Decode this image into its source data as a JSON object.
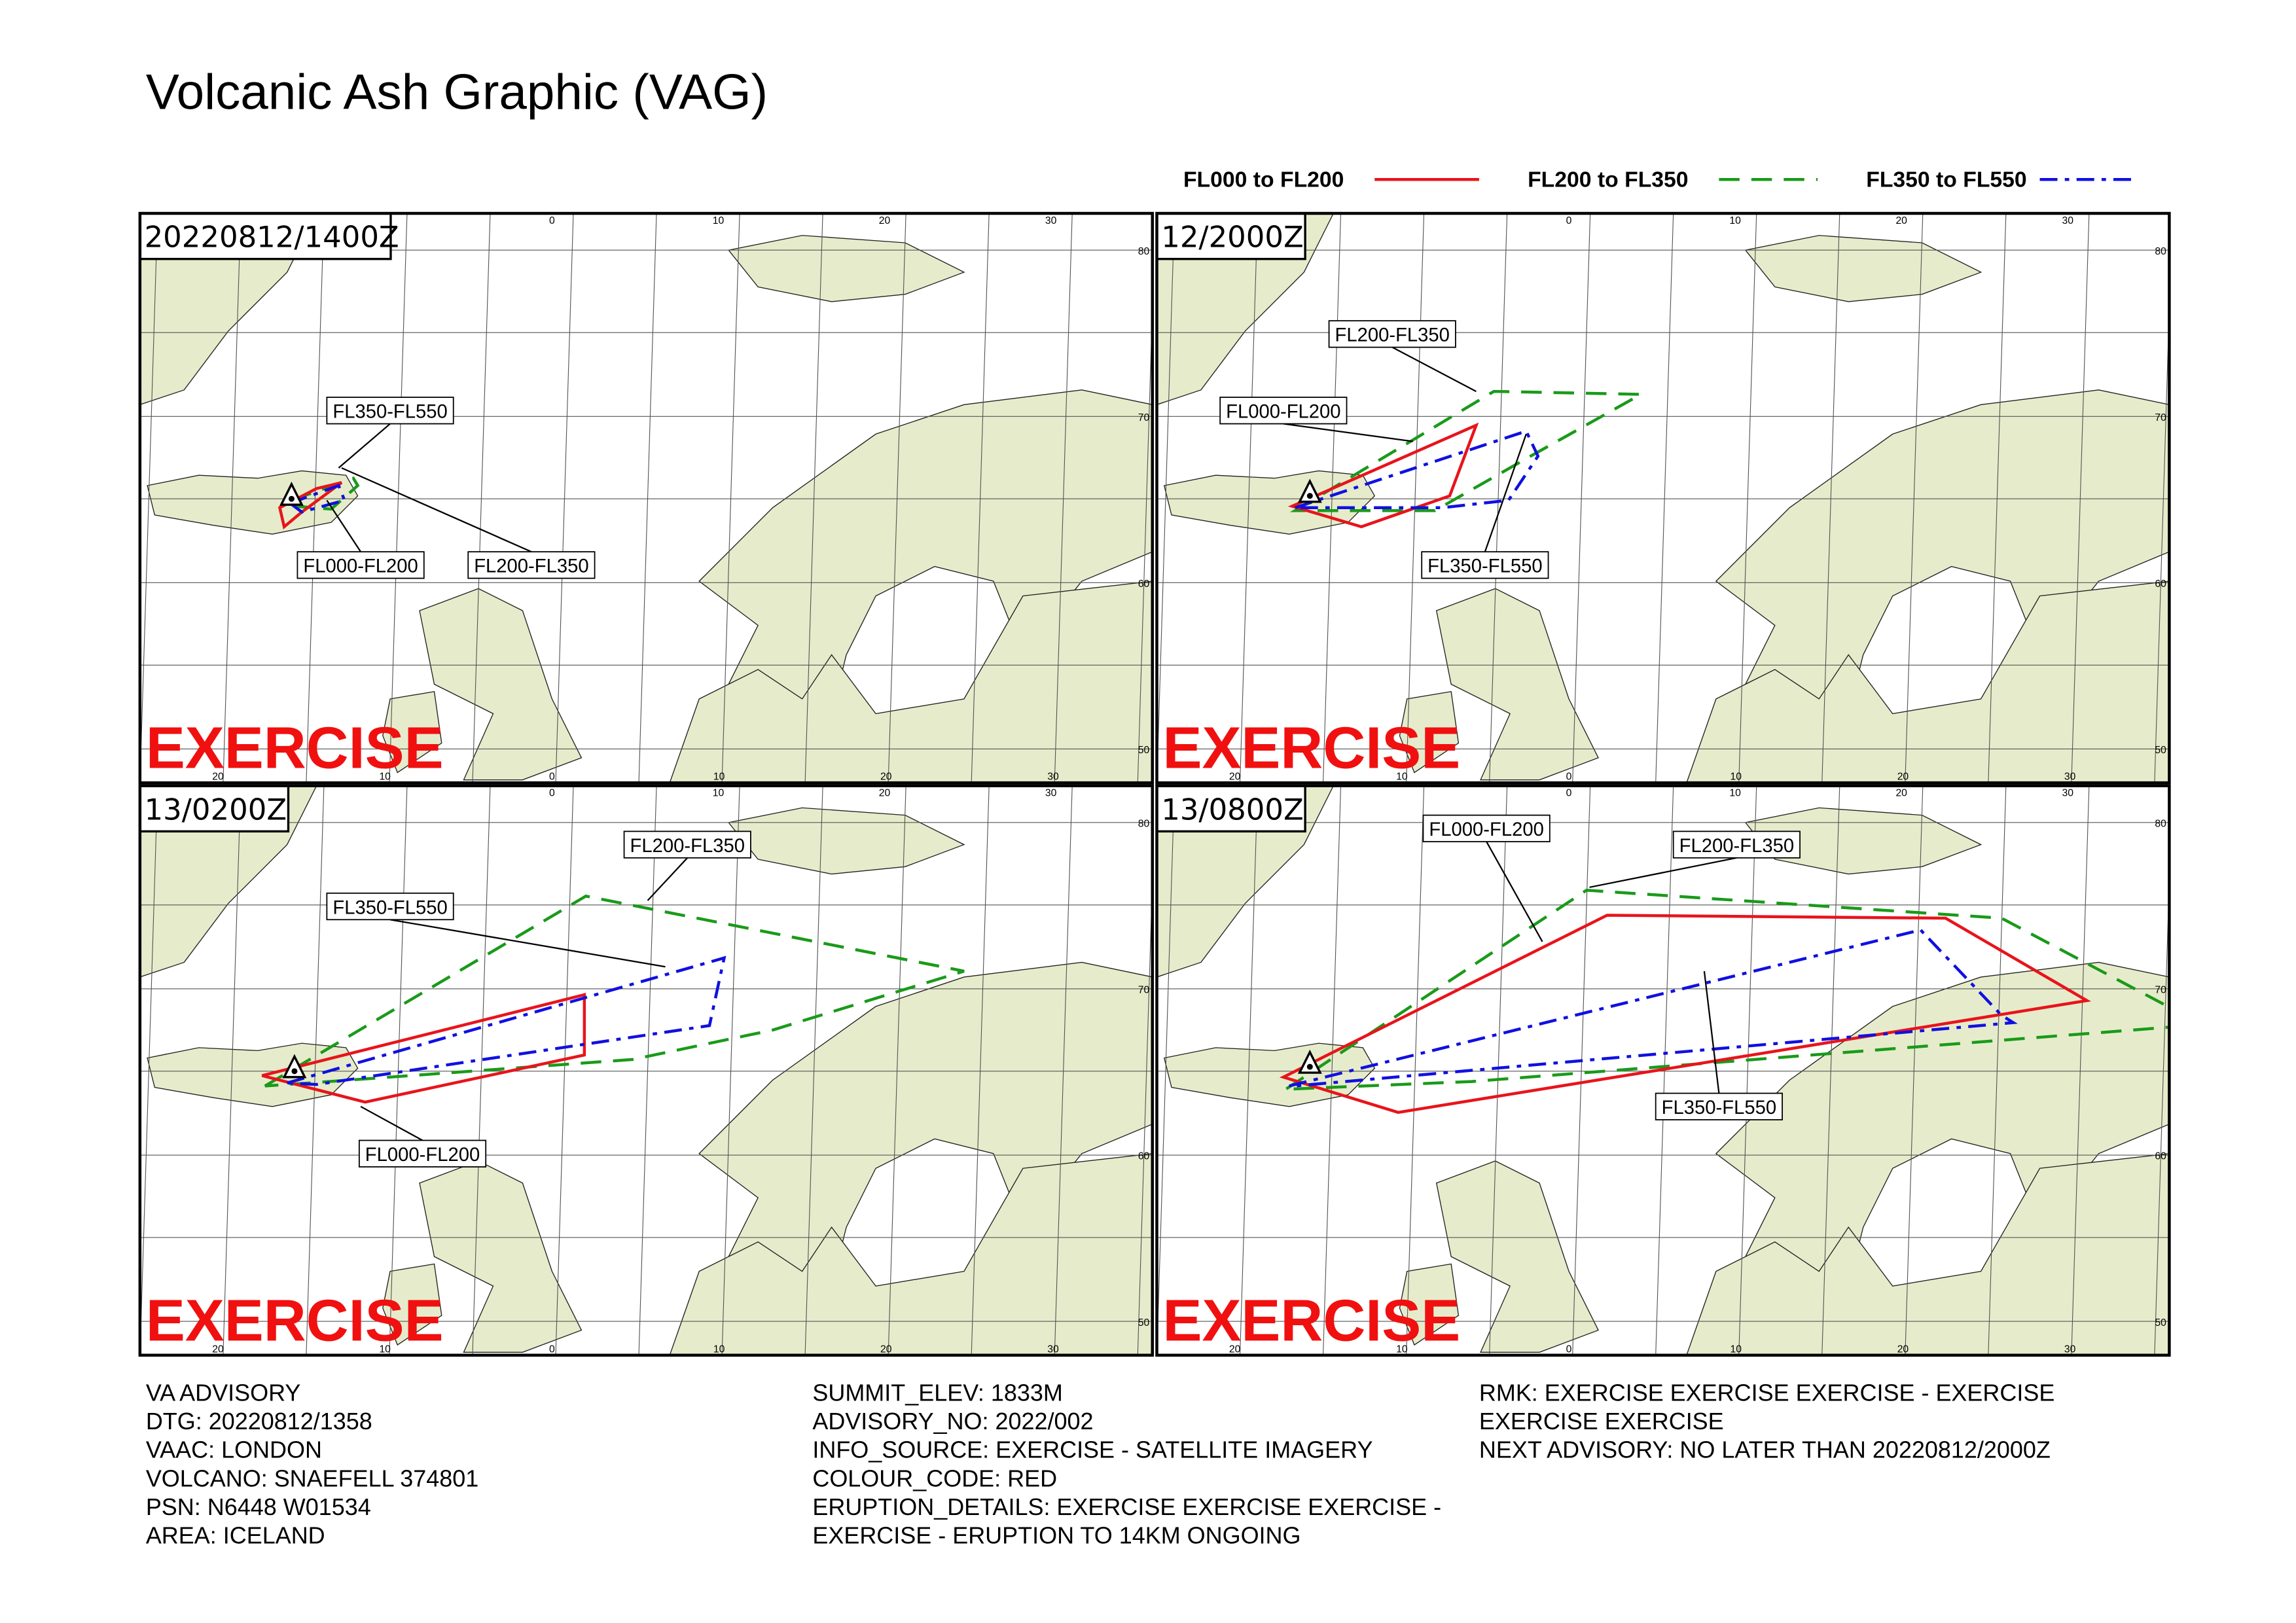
{
  "title": "Volcanic Ash Graphic (VAG)",
  "legend": [
    "FL000 to FL200",
    "FL200 to FL350",
    "FL350 to FL550"
  ],
  "watermark": "EXERCISE",
  "graticule": {
    "lon_top": [
      "0",
      "10",
      "20",
      "30"
    ],
    "lon_bottom": [
      "20",
      "10",
      "0",
      "10",
      "20",
      "30"
    ],
    "lat": [
      "80",
      "70",
      "60",
      "50"
    ]
  },
  "panels": [
    {
      "time": "20220812/1400Z",
      "labels": [
        "FL350-FL550",
        "FL000-FL200",
        "FL200-FL350"
      ]
    },
    {
      "time": "12/2000Z",
      "labels": [
        "FL200-FL350",
        "FL000-FL200",
        "FL350-FL550"
      ]
    },
    {
      "time": "13/0200Z",
      "labels": [
        "FL200-FL350",
        "FL350-FL550",
        "FL000-FL200"
      ]
    },
    {
      "time": "13/0800Z",
      "labels": [
        "FL000-FL200",
        "FL200-FL350",
        "FL350-FL550"
      ]
    }
  ],
  "advisory": [
    [
      "VA ADVISORY",
      "DTG: 20220812/1358",
      "VAAC: LONDON",
      "VOLCANO: SNAEFELL 374801",
      "PSN: N6448 W01534",
      "AREA: ICELAND"
    ],
    [
      "SUMMIT_ELEV: 1833M",
      "ADVISORY_NO: 2022/002",
      "INFO_SOURCE: EXERCISE - SATELLITE IMAGERY",
      "COLOUR_CODE: RED",
      "ERUPTION_DETAILS: EXERCISE EXERCISE EXERCISE -",
      "EXERCISE - ERUPTION TO 14KM ONGOING"
    ],
    [
      "RMK: EXERCISE EXERCISE EXERCISE - EXERCISE",
      "EXERCISE EXERCISE",
      "NEXT ADVISORY: NO LATER THAN 20220812/2000Z"
    ]
  ]
}
